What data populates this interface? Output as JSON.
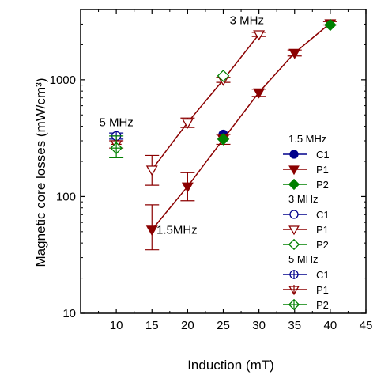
{
  "chart_data": {
    "type": "scatter",
    "title": "",
    "xlabel": "Induction (mT)",
    "ylabel": "Magnetic core losses (mW/cm³)",
    "xlim": [
      5,
      45
    ],
    "ylim": [
      10,
      4000
    ],
    "y_scale": "log",
    "x_ticks": [
      10,
      15,
      20,
      25,
      30,
      35,
      40,
      45
    ],
    "y_ticks": [
      10,
      100,
      1000
    ],
    "grid": false,
    "legend_position": "right",
    "annotations": [
      {
        "text": "5 MHz",
        "x": 10,
        "y": 400
      },
      {
        "text": "3 MHz",
        "x": 28.3,
        "y": 3000
      },
      {
        "text": "1.5MHz",
        "x": 18.5,
        "y": 48
      }
    ],
    "groups": [
      {
        "label": "1.5 MHz",
        "series": [
          {
            "name": "C1",
            "color": "#00008B",
            "marker": "circle",
            "fill": "filled",
            "points": [
              {
                "x": 25,
                "y": 340,
                "err": 0
              }
            ]
          },
          {
            "name": "P1",
            "color": "#8B0000",
            "marker": "triangle-down",
            "fill": "filled",
            "line": true,
            "points": [
              {
                "x": 15,
                "y": 52,
                "lo": 35,
                "hi": 85
              },
              {
                "x": 20,
                "y": 122,
                "lo": 92,
                "hi": 160
              },
              {
                "x": 25,
                "y": 310,
                "lo": 280,
                "hi": 340
              },
              {
                "x": 30,
                "y": 780,
                "lo": 720,
                "hi": 830
              },
              {
                "x": 35,
                "y": 1700,
                "lo": 1600,
                "hi": 1800
              },
              {
                "x": 40,
                "y": 3050,
                "lo": 2950,
                "hi": 3150
              }
            ]
          },
          {
            "name": "P2",
            "color": "#008000",
            "marker": "diamond",
            "fill": "filled",
            "points": [
              {
                "x": 25,
                "y": 310,
                "err": 0
              },
              {
                "x": 40,
                "y": 2950,
                "err": 0
              }
            ]
          }
        ]
      },
      {
        "label": "3 MHz",
        "series": [
          {
            "name": "C1",
            "color": "#00008B",
            "marker": "circle",
            "fill": "open",
            "points": []
          },
          {
            "name": "P1",
            "color": "#8B0000",
            "marker": "triangle-down",
            "fill": "open",
            "line": true,
            "points": [
              {
                "x": 15,
                "y": 170,
                "lo": 125,
                "hi": 225
              },
              {
                "x": 20,
                "y": 430,
                "lo": 390,
                "hi": 470
              },
              {
                "x": 25,
                "y": 1000,
                "lo": 950,
                "hi": 1050
              },
              {
                "x": 30,
                "y": 2450,
                "lo": 2350,
                "hi": 2550
              }
            ]
          },
          {
            "name": "P2",
            "color": "#008000",
            "marker": "diamond",
            "fill": "open",
            "points": [
              {
                "x": 25,
                "y": 1080,
                "err": 0
              }
            ]
          }
        ]
      },
      {
        "label": "5 MHz",
        "series": [
          {
            "name": "C1",
            "color": "#00008B",
            "marker": "circle-cross",
            "fill": "open",
            "points": [
              {
                "x": 10,
                "y": 330,
                "lo": 310,
                "hi": 350
              }
            ]
          },
          {
            "name": "P1",
            "color": "#8B0000",
            "marker": "triangle-down-cross",
            "fill": "open",
            "points": [
              {
                "x": 10,
                "y": 280,
                "lo": 260,
                "hi": 300
              }
            ]
          },
          {
            "name": "P2",
            "color": "#008000",
            "marker": "diamond-cross",
            "fill": "open",
            "points": [
              {
                "x": 10,
                "y": 260,
                "lo": 215,
                "hi": 330
              }
            ]
          }
        ]
      }
    ]
  }
}
